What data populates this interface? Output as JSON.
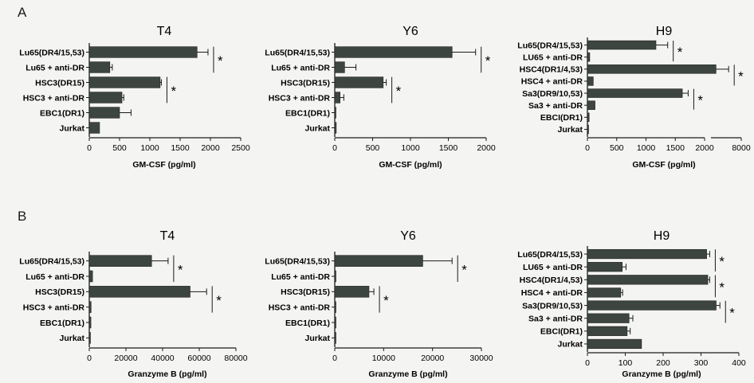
{
  "panels": {
    "a": "A",
    "b": "B"
  },
  "chart_data": [
    {
      "type": "bar",
      "orientation": "horizontal",
      "title": "T4",
      "xlabel": "GM-CSF (pg/ml)",
      "xlim": [
        0,
        2500
      ],
      "xticks": [
        "0",
        "500",
        "1000",
        "1500",
        "2000",
        "2500"
      ],
      "categories": [
        "Lu65(DR4/15,53)",
        "Lu65 + anti-DR",
        "HSC3(DR15)",
        "HSC3 + anti-DR",
        "EBC1(DR1)",
        "Jurkat"
      ],
      "values": [
        1780,
        340,
        1170,
        540,
        500,
        170
      ],
      "errors": [
        180,
        40,
        20,
        30,
        190,
        0
      ],
      "significance": [
        {
          "rows": [
            0,
            1
          ],
          "label": "*"
        },
        {
          "rows": [
            2,
            3
          ],
          "label": "*"
        }
      ]
    },
    {
      "type": "bar",
      "orientation": "horizontal",
      "title": "Y6",
      "xlabel": "GM-CSF (pg/ml)",
      "xlim": [
        0,
        2000
      ],
      "xticks": [
        "0",
        "500",
        "1000",
        "1500",
        "2000"
      ],
      "categories": [
        "Lu65(DR4/15,53)",
        "Lu65 + anti-DR",
        "HSC3(DR15)",
        "HSC3 + anti-DR",
        "EBC1(DR1)",
        "Jurkat"
      ],
      "values": [
        1550,
        130,
        640,
        70,
        10,
        20
      ],
      "errors": [
        310,
        150,
        40,
        50,
        0,
        0
      ],
      "significance": [
        {
          "rows": [
            0,
            1
          ],
          "label": "*"
        },
        {
          "rows": [
            2,
            3
          ],
          "label": "*"
        }
      ]
    },
    {
      "type": "bar",
      "orientation": "horizontal",
      "broken_axis": true,
      "title": "H9",
      "xlabel": "GM-CSF (pg/ml)",
      "segments": [
        {
          "range": [
            0,
            2000
          ],
          "ticks": [
            "0",
            "500",
            "1000",
            "1500",
            "2000"
          ]
        },
        {
          "range": [
            2000,
            8000
          ],
          "ticks": [
            "8000"
          ]
        }
      ],
      "categories": [
        "Lu65(DR4/15,53)",
        "LU65 + anti-DR",
        "HSC4(DR1/4,53)",
        "HSC4 + anti-DR",
        "Sa3(DR9/10,53)",
        "Sa3 + anti-DR",
        "EBCI(DR1)",
        "Jurkat"
      ],
      "values": [
        1170,
        40,
        3000,
        100,
        1620,
        130,
        30,
        20
      ],
      "errors": [
        200,
        0,
        2500,
        0,
        100,
        0,
        0,
        0
      ],
      "significance": [
        {
          "rows": [
            0,
            1
          ],
          "label": "*"
        },
        {
          "rows": [
            2,
            3
          ],
          "label": "*"
        },
        {
          "rows": [
            4,
            5
          ],
          "label": "*"
        }
      ]
    },
    {
      "type": "bar",
      "orientation": "horizontal",
      "title": "T4",
      "xlabel": "Granzyme B (pg/ml)",
      "xlim": [
        0,
        80000
      ],
      "xticks": [
        "0",
        "20000",
        "40000",
        "60000",
        "80000"
      ],
      "categories": [
        "Lu65(DR4/15,53)",
        "Lu65 + anti-DR",
        "HSC3(DR15)",
        "HSC3 + anti-DR",
        "EBC1(DR1)",
        "Jurkat"
      ],
      "values": [
        34000,
        1800,
        55000,
        1000,
        900,
        500
      ],
      "errors": [
        9000,
        0,
        9000,
        0,
        0,
        0
      ],
      "significance": [
        {
          "rows": [
            0,
            1
          ],
          "label": "*"
        },
        {
          "rows": [
            2,
            3
          ],
          "label": "*"
        }
      ]
    },
    {
      "type": "bar",
      "orientation": "horizontal",
      "title": "Y6",
      "xlabel": "Granzyme B (pg/ml)",
      "xlim": [
        0,
        30000
      ],
      "xticks": [
        "0",
        "10000",
        "20000",
        "30000"
      ],
      "categories": [
        "Lu65(DR4/15,53)",
        "Lu65 + anti-DR",
        "HSC3(DR15)",
        "HSC3 + anti-DR",
        "EBC1(DR1)",
        "Jurkat"
      ],
      "values": [
        18000,
        100,
        7000,
        100,
        100,
        100
      ],
      "errors": [
        6000,
        0,
        1000,
        0,
        0,
        0
      ],
      "significance": [
        {
          "rows": [
            0,
            1
          ],
          "label": "*"
        },
        {
          "rows": [
            2,
            3
          ],
          "label": "*"
        }
      ]
    },
    {
      "type": "bar",
      "orientation": "horizontal",
      "title": "H9",
      "xlabel": "Granzyme B (pg/ml)",
      "xlim": [
        0,
        400
      ],
      "xticks": [
        "0",
        "100",
        "200",
        "300",
        "400"
      ],
      "categories": [
        "Lu65(DR4/15,53)",
        "LU65 + anti-DR",
        "HSC4(DR1/4,53)",
        "HSC4 + anti-DR",
        "Sa3(DR9/10,53)",
        "Sa3 + anti-DR",
        "EBCI(DR1)",
        "Jurkat"
      ],
      "values": [
        315,
        92,
        318,
        88,
        340,
        110,
        105,
        143
      ],
      "errors": [
        8,
        10,
        5,
        5,
        10,
        10,
        8,
        0
      ],
      "significance": [
        {
          "rows": [
            0,
            1
          ],
          "label": "*"
        },
        {
          "rows": [
            2,
            3
          ],
          "label": "*"
        },
        {
          "rows": [
            4,
            5
          ],
          "label": "*"
        }
      ]
    }
  ],
  "colors": {
    "bar": "#3d4540",
    "axis": "#1a1a1a"
  }
}
